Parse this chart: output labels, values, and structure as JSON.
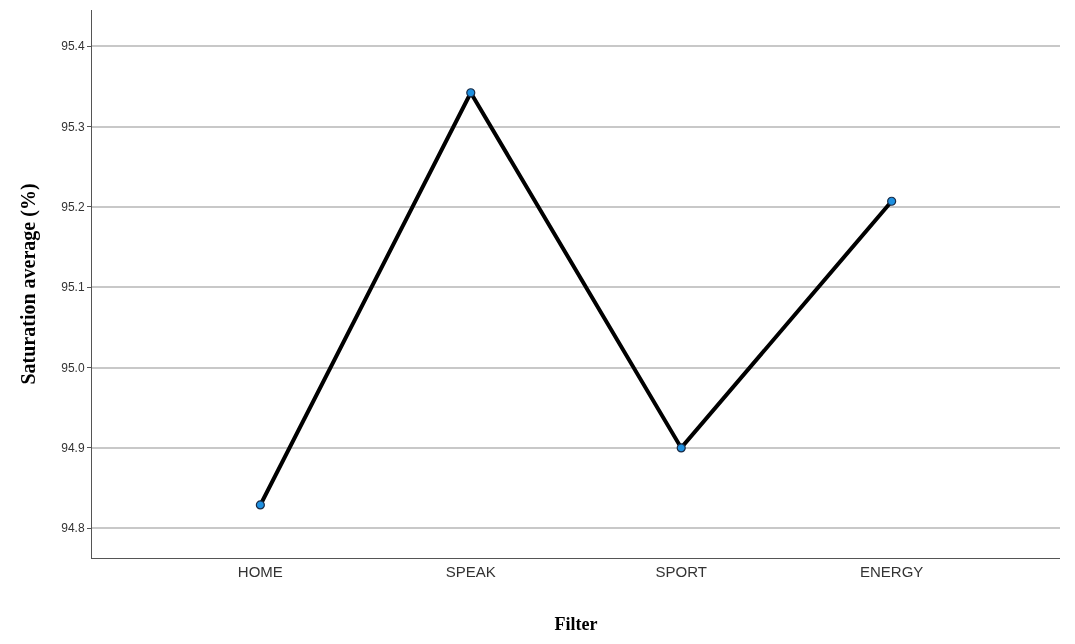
{
  "chart_data": {
    "type": "line",
    "xlabel": "Filter",
    "ylabel": "Saturation average (%)",
    "categories": [
      "HOME",
      "SPEAK",
      "SPORT",
      "ENERGY"
    ],
    "series": [
      {
        "color": "#000000",
        "values": [
          94.829,
          95.342,
          94.9,
          95.207
        ]
      }
    ],
    "marker": "circle",
    "line_style": "solid",
    "ylim": [
      94.763,
      95.445
    ],
    "yticks": [
      {
        "value": 94.8,
        "label": "94.8"
      },
      {
        "value": 94.9,
        "label": "94.9"
      },
      {
        "value": 95.0,
        "label": "95.0"
      },
      {
        "value": 95.1,
        "label": "95.1"
      },
      {
        "value": 95.2,
        "label": "95.2"
      },
      {
        "value": 95.3,
        "label": "95.3"
      },
      {
        "value": 95.4,
        "label": "95.4"
      }
    ],
    "grid": "y"
  }
}
